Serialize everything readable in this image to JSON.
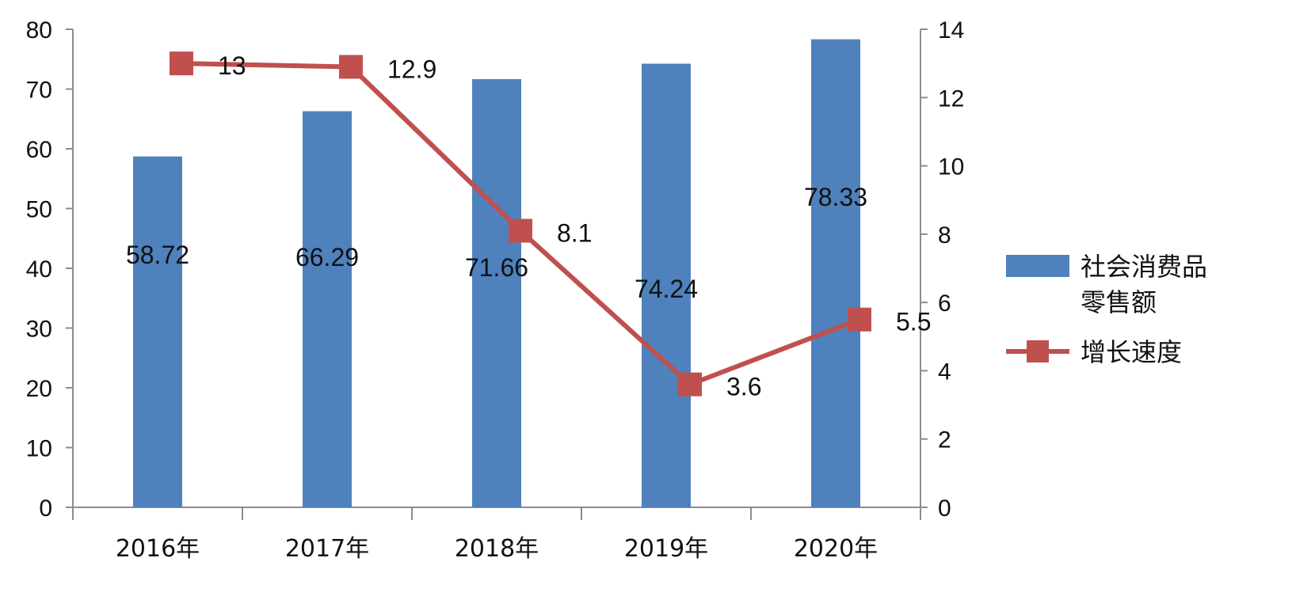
{
  "chart_data": {
    "type": "bar",
    "title": "",
    "categories": [
      "2016年",
      "2017年",
      "2018年",
      "2019年",
      "2020年"
    ],
    "series": [
      {
        "name": "社会消费品零售额",
        "type": "bar",
        "axis": "left",
        "color": "#4F81BD",
        "values": [
          58.72,
          66.29,
          71.66,
          74.24,
          78.33
        ],
        "labels": [
          "58.72",
          "66.29",
          "71.66",
          "74.24",
          "78.33"
        ]
      },
      {
        "name": "增长速度",
        "type": "line",
        "axis": "right",
        "color": "#C0504D",
        "values": [
          13,
          12.9,
          8.1,
          3.6,
          5.5
        ],
        "labels": [
          "13",
          "12.9",
          "8.1",
          "3.6",
          "5.5"
        ]
      }
    ],
    "y_left": {
      "ylim": [
        0,
        80
      ],
      "ticks": [
        "0",
        "10",
        "20",
        "30",
        "40",
        "50",
        "60",
        "70",
        "80"
      ]
    },
    "y_right": {
      "ylim": [
        0,
        14
      ],
      "ticks": [
        "0",
        "2",
        "4",
        "6",
        "8",
        "10",
        "12",
        "14"
      ]
    },
    "legend": {
      "placement": "right",
      "bar_label_lines": [
        "社会消费品",
        "零售额"
      ],
      "line_label": "增长速度"
    },
    "grid": false
  }
}
